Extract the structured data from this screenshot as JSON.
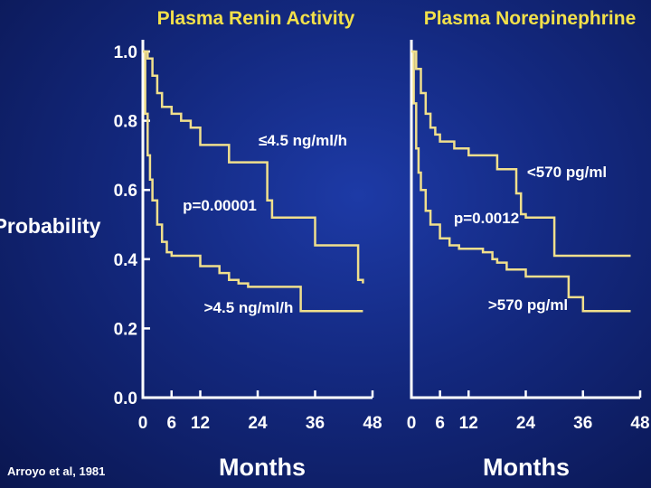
{
  "chart_data": [
    {
      "type": "line",
      "step": true,
      "title": "Plasma Renin Activity",
      "ylabel": "Probability",
      "xlabel": "Months",
      "xlim": [
        0,
        48
      ],
      "ylim": [
        0,
        1.0
      ],
      "xticks": [
        "0",
        "6",
        "12",
        "24",
        "36",
        "48"
      ],
      "xtick_values": [
        0,
        6,
        12,
        24,
        36,
        48
      ],
      "yticks": [
        "0.0",
        "0.2",
        "0.4",
        "0.6",
        "0.8",
        "1.0"
      ],
      "ytick_values": [
        0,
        0.2,
        0.4,
        0.6,
        0.8,
        1.0
      ],
      "series": [
        {
          "name": "≤4.5 ng/ml/h",
          "x": [
            0,
            1,
            2,
            3,
            4,
            6,
            8,
            10,
            12,
            18,
            26,
            27,
            36,
            45,
            46
          ],
          "y": [
            1.0,
            0.98,
            0.93,
            0.88,
            0.84,
            0.82,
            0.8,
            0.78,
            0.73,
            0.68,
            0.57,
            0.52,
            0.44,
            0.34,
            0.33
          ]
        },
        {
          "name": ">4.5 ng/ml/h",
          "x": [
            0,
            0.5,
            1,
            1.5,
            2,
            3,
            4,
            5,
            6,
            12,
            16,
            18,
            20,
            22,
            26,
            33,
            46
          ],
          "y": [
            1.0,
            0.82,
            0.7,
            0.63,
            0.57,
            0.5,
            0.45,
            0.42,
            0.41,
            0.38,
            0.36,
            0.34,
            0.33,
            0.32,
            0.32,
            0.25,
            0.25
          ]
        }
      ],
      "annotations": [
        "≤4.5 ng/ml/h",
        "p=0.00001",
        ">4.5 ng/ml/h"
      ]
    },
    {
      "type": "line",
      "step": true,
      "title": "Plasma Norepinephrine",
      "xlabel": "Months",
      "xlim": [
        0,
        48
      ],
      "ylim": [
        0,
        1.0
      ],
      "xticks": [
        "0",
        "6",
        "12",
        "24",
        "36",
        "48"
      ],
      "xtick_values": [
        0,
        6,
        12,
        24,
        36,
        48
      ],
      "series": [
        {
          "name": "<570 pg/ml",
          "x": [
            0,
            1,
            2,
            3,
            4,
            5,
            6,
            9,
            12,
            18,
            22,
            23,
            24,
            30,
            46
          ],
          "y": [
            1.0,
            0.95,
            0.88,
            0.82,
            0.78,
            0.76,
            0.74,
            0.72,
            0.7,
            0.66,
            0.59,
            0.53,
            0.52,
            0.41,
            0.41
          ]
        },
        {
          "name": ">570 pg/ml",
          "x": [
            0,
            0.5,
            1,
            1.5,
            2,
            3,
            4,
            6,
            8,
            10,
            15,
            17,
            18,
            20,
            24,
            33,
            36,
            46
          ],
          "y": [
            1.0,
            0.85,
            0.72,
            0.65,
            0.6,
            0.54,
            0.5,
            0.46,
            0.44,
            0.43,
            0.42,
            0.4,
            0.39,
            0.37,
            0.35,
            0.29,
            0.25,
            0.25
          ]
        }
      ],
      "annotations": [
        "<570 pg/ml",
        "p=0.0012",
        ">570 pg/ml"
      ]
    }
  ],
  "credit": "Arroyo et al, 1981"
}
